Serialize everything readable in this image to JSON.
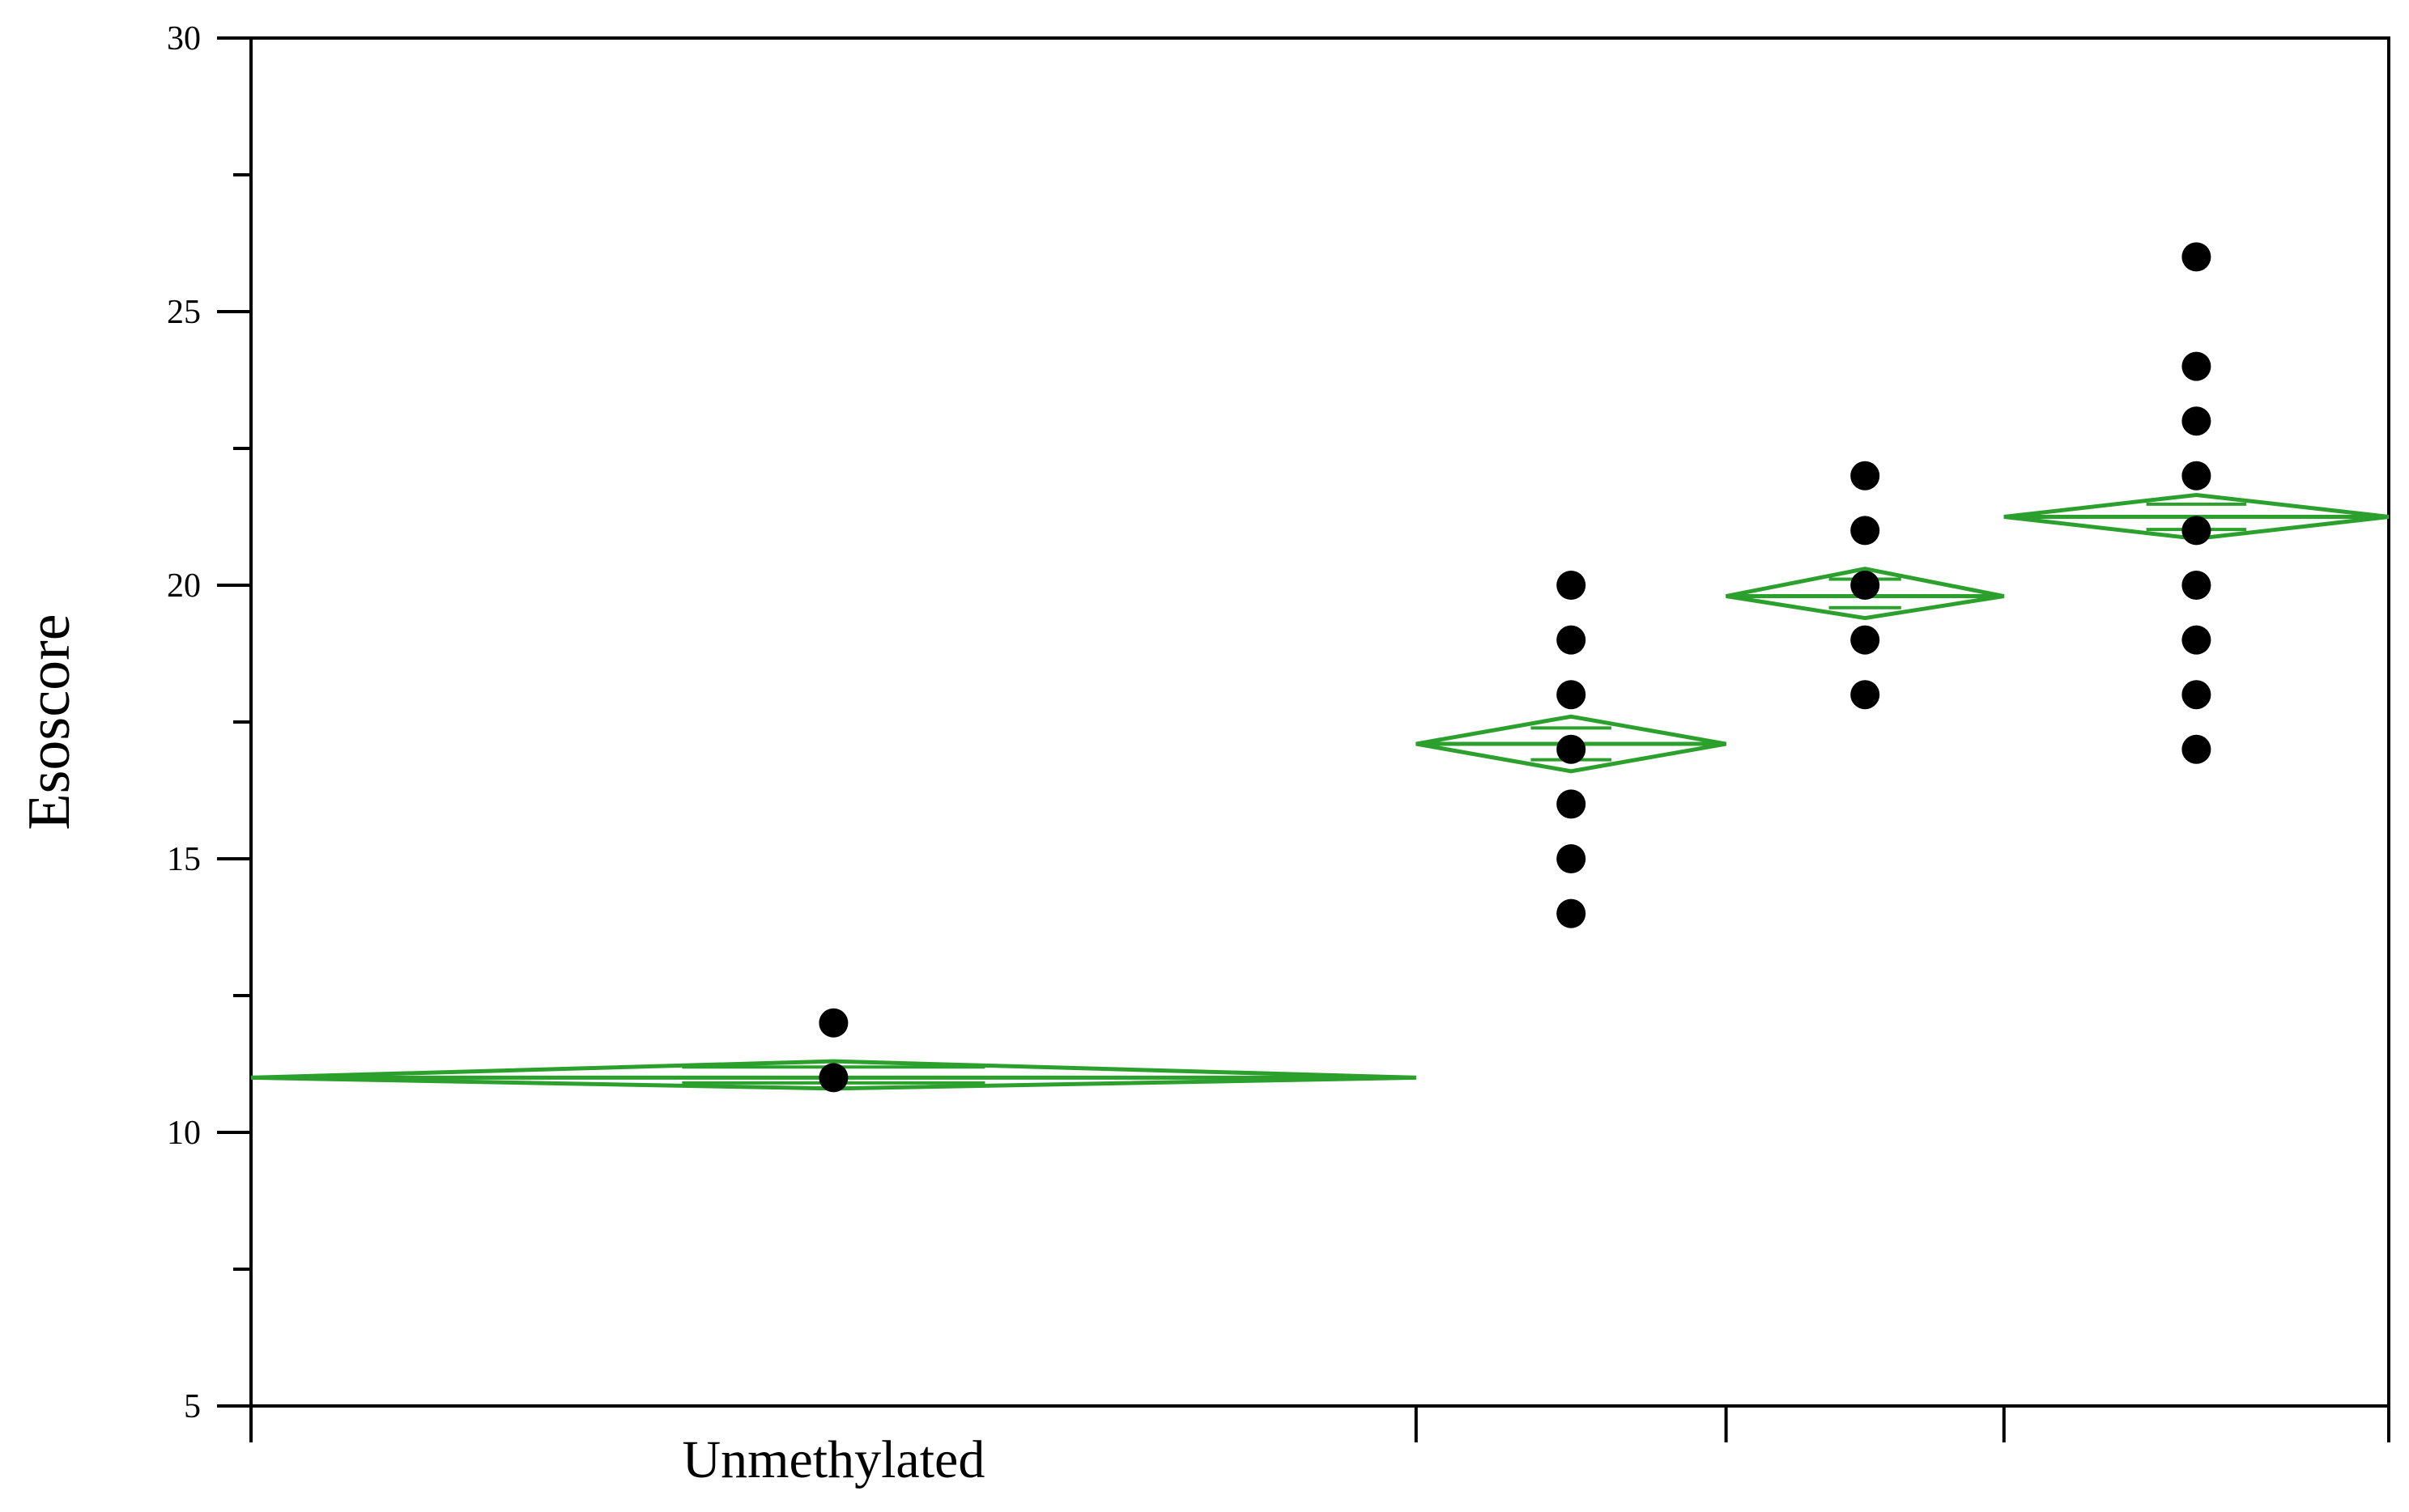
{
  "chart_data": {
    "type": "scatter",
    "title": "",
    "ylabel": "Esoscore",
    "ylim": [
      5,
      30
    ],
    "yticks": [
      5,
      10,
      15,
      20,
      25,
      30
    ],
    "x_boundaries": [
      0,
      0.545,
      0.69,
      0.82,
      1.0
    ],
    "categories": [
      "Unmethylated",
      "",
      "",
      ""
    ],
    "grid": false,
    "colors": {
      "points": "#000000",
      "diamond": "#2ca02c",
      "axis": "#000000"
    },
    "groups": [
      {
        "label": "Unmethylated",
        "points": [
          11,
          12
        ],
        "mean": 11.0,
        "ci_low": 10.8,
        "ci_high": 11.3
      },
      {
        "label": "",
        "points": [
          14,
          15,
          16,
          17,
          18,
          19,
          20
        ],
        "mean": 17.1,
        "ci_low": 16.6,
        "ci_high": 17.6
      },
      {
        "label": "",
        "points": [
          18,
          19,
          20,
          21,
          22
        ],
        "mean": 19.8,
        "ci_low": 19.4,
        "ci_high": 20.3
      },
      {
        "label": "",
        "points": [
          17,
          18,
          19,
          20,
          21,
          22,
          23,
          24,
          26
        ],
        "mean": 21.25,
        "ci_low": 20.85,
        "ci_high": 21.65
      }
    ]
  }
}
